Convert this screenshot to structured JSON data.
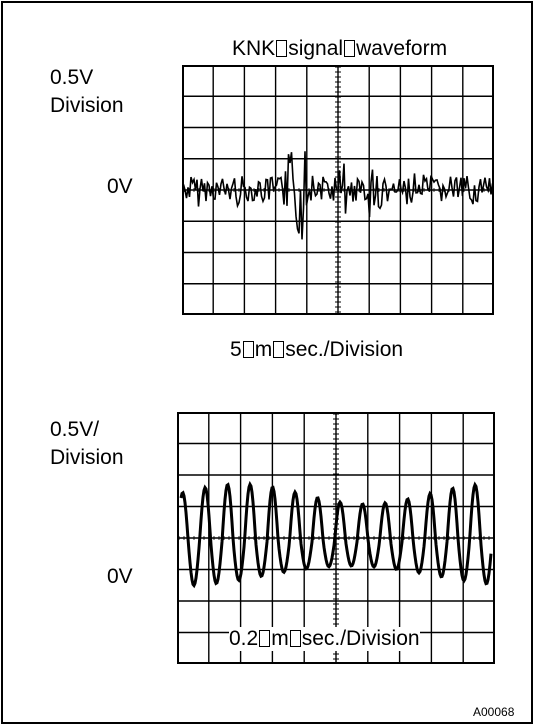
{
  "figure": {
    "title": "KNK▯signal▯waveform",
    "code": "A00068"
  },
  "scope_top": {
    "volt_label_line1": "0.5V",
    "volt_label_line2": "Division",
    "zero_label": "0V",
    "time_label": "5▯m▯sec./Division",
    "grid_divisions": {
      "cols": 10,
      "rows": 8
    },
    "signal": "noise with knock burst"
  },
  "scope_bottom": {
    "volt_label_line1": "0.5V/",
    "volt_label_line2": "Division",
    "zero_label": "0V",
    "time_label": "0.2▯m▯sec./Division",
    "grid_divisions": {
      "cols": 10,
      "rows": 8
    },
    "signal": "sinusoidal oscillation"
  }
}
